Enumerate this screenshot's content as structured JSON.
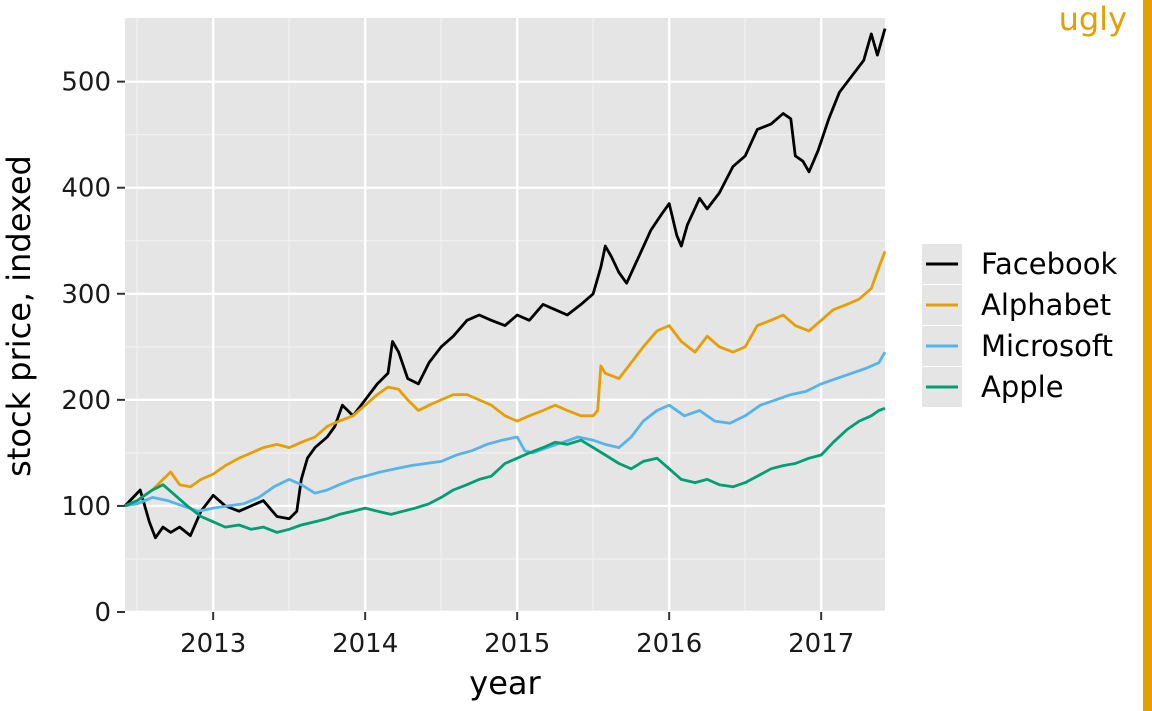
{
  "tag": {
    "text": "ugly",
    "color": "#E69F00"
  },
  "chart_data": {
    "type": "line",
    "title": "",
    "xlabel": "year",
    "ylabel": "stock price, indexed",
    "xlim": [
      2012.42,
      2017.42
    ],
    "ylim": [
      0,
      560
    ],
    "x_ticks": [
      2013,
      2014,
      2015,
      2016,
      2017
    ],
    "y_ticks": [
      0,
      100,
      200,
      300,
      400,
      500
    ],
    "grid": true,
    "panel_background": "#E5E5E5",
    "legend_position": "right",
    "series": [
      {
        "name": "Facebook",
        "color": "#000000",
        "points": [
          [
            2012.42,
            100
          ],
          [
            2012.52,
            115
          ],
          [
            2012.58,
            85
          ],
          [
            2012.62,
            70
          ],
          [
            2012.67,
            80
          ],
          [
            2012.72,
            75
          ],
          [
            2012.78,
            80
          ],
          [
            2012.85,
            72
          ],
          [
            2012.92,
            95
          ],
          [
            2013.0,
            110
          ],
          [
            2013.08,
            100
          ],
          [
            2013.17,
            95
          ],
          [
            2013.25,
            100
          ],
          [
            2013.33,
            105
          ],
          [
            2013.42,
            90
          ],
          [
            2013.5,
            88
          ],
          [
            2013.55,
            95
          ],
          [
            2013.58,
            125
          ],
          [
            2013.62,
            145
          ],
          [
            2013.67,
            155
          ],
          [
            2013.75,
            165
          ],
          [
            2013.8,
            175
          ],
          [
            2013.85,
            195
          ],
          [
            2013.92,
            185
          ],
          [
            2014.0,
            200
          ],
          [
            2014.08,
            215
          ],
          [
            2014.15,
            225
          ],
          [
            2014.18,
            255
          ],
          [
            2014.22,
            245
          ],
          [
            2014.28,
            220
          ],
          [
            2014.35,
            215
          ],
          [
            2014.42,
            235
          ],
          [
            2014.5,
            250
          ],
          [
            2014.58,
            260
          ],
          [
            2014.67,
            275
          ],
          [
            2014.75,
            280
          ],
          [
            2014.83,
            275
          ],
          [
            2014.92,
            270
          ],
          [
            2015.0,
            280
          ],
          [
            2015.08,
            275
          ],
          [
            2015.17,
            290
          ],
          [
            2015.25,
            285
          ],
          [
            2015.33,
            280
          ],
          [
            2015.42,
            290
          ],
          [
            2015.5,
            300
          ],
          [
            2015.55,
            325
          ],
          [
            2015.58,
            345
          ],
          [
            2015.62,
            335
          ],
          [
            2015.67,
            320
          ],
          [
            2015.72,
            310
          ],
          [
            2015.8,
            335
          ],
          [
            2015.88,
            360
          ],
          [
            2015.95,
            375
          ],
          [
            2016.0,
            385
          ],
          [
            2016.05,
            355
          ],
          [
            2016.08,
            345
          ],
          [
            2016.12,
            365
          ],
          [
            2016.2,
            390
          ],
          [
            2016.25,
            380
          ],
          [
            2016.33,
            395
          ],
          [
            2016.42,
            420
          ],
          [
            2016.5,
            430
          ],
          [
            2016.58,
            455
          ],
          [
            2016.67,
            460
          ],
          [
            2016.75,
            470
          ],
          [
            2016.8,
            465
          ],
          [
            2016.83,
            430
          ],
          [
            2016.88,
            425
          ],
          [
            2016.92,
            415
          ],
          [
            2016.98,
            435
          ],
          [
            2017.05,
            465
          ],
          [
            2017.12,
            490
          ],
          [
            2017.2,
            505
          ],
          [
            2017.28,
            520
          ],
          [
            2017.33,
            545
          ],
          [
            2017.37,
            525
          ],
          [
            2017.42,
            550
          ]
        ]
      },
      {
        "name": "Alphabet",
        "color": "#E69F00",
        "points": [
          [
            2012.42,
            100
          ],
          [
            2012.5,
            105
          ],
          [
            2012.6,
            115
          ],
          [
            2012.67,
            125
          ],
          [
            2012.72,
            132
          ],
          [
            2012.78,
            120
          ],
          [
            2012.85,
            118
          ],
          [
            2012.92,
            125
          ],
          [
            2013.0,
            130
          ],
          [
            2013.08,
            138
          ],
          [
            2013.17,
            145
          ],
          [
            2013.25,
            150
          ],
          [
            2013.33,
            155
          ],
          [
            2013.42,
            158
          ],
          [
            2013.5,
            155
          ],
          [
            2013.58,
            160
          ],
          [
            2013.67,
            165
          ],
          [
            2013.75,
            175
          ],
          [
            2013.83,
            180
          ],
          [
            2013.92,
            185
          ],
          [
            2014.0,
            195
          ],
          [
            2014.08,
            205
          ],
          [
            2014.15,
            212
          ],
          [
            2014.22,
            210
          ],
          [
            2014.28,
            200
          ],
          [
            2014.35,
            190
          ],
          [
            2014.42,
            195
          ],
          [
            2014.5,
            200
          ],
          [
            2014.58,
            205
          ],
          [
            2014.67,
            205
          ],
          [
            2014.75,
            200
          ],
          [
            2014.83,
            195
          ],
          [
            2014.92,
            185
          ],
          [
            2015.0,
            180
          ],
          [
            2015.08,
            185
          ],
          [
            2015.17,
            190
          ],
          [
            2015.25,
            195
          ],
          [
            2015.33,
            190
          ],
          [
            2015.42,
            185
          ],
          [
            2015.5,
            185
          ],
          [
            2015.53,
            190
          ],
          [
            2015.55,
            232
          ],
          [
            2015.58,
            225
          ],
          [
            2015.67,
            220
          ],
          [
            2015.75,
            235
          ],
          [
            2015.83,
            250
          ],
          [
            2015.92,
            265
          ],
          [
            2016.0,
            270
          ],
          [
            2016.08,
            255
          ],
          [
            2016.17,
            245
          ],
          [
            2016.25,
            260
          ],
          [
            2016.33,
            250
          ],
          [
            2016.42,
            245
          ],
          [
            2016.5,
            250
          ],
          [
            2016.58,
            270
          ],
          [
            2016.67,
            275
          ],
          [
            2016.75,
            280
          ],
          [
            2016.83,
            270
          ],
          [
            2016.92,
            265
          ],
          [
            2017.0,
            275
          ],
          [
            2017.08,
            285
          ],
          [
            2017.17,
            290
          ],
          [
            2017.25,
            295
          ],
          [
            2017.33,
            305
          ],
          [
            2017.38,
            325
          ],
          [
            2017.42,
            340
          ]
        ]
      },
      {
        "name": "Microsoft",
        "color": "#56B4E9",
        "points": [
          [
            2012.42,
            100
          ],
          [
            2012.5,
            102
          ],
          [
            2012.6,
            108
          ],
          [
            2012.7,
            105
          ],
          [
            2012.8,
            100
          ],
          [
            2012.9,
            95
          ],
          [
            2013.0,
            98
          ],
          [
            2013.1,
            100
          ],
          [
            2013.2,
            102
          ],
          [
            2013.3,
            108
          ],
          [
            2013.4,
            118
          ],
          [
            2013.5,
            125
          ],
          [
            2013.58,
            120
          ],
          [
            2013.67,
            112
          ],
          [
            2013.75,
            115
          ],
          [
            2013.83,
            120
          ],
          [
            2013.92,
            125
          ],
          [
            2014.0,
            128
          ],
          [
            2014.1,
            132
          ],
          [
            2014.2,
            135
          ],
          [
            2014.3,
            138
          ],
          [
            2014.4,
            140
          ],
          [
            2014.5,
            142
          ],
          [
            2014.6,
            148
          ],
          [
            2014.7,
            152
          ],
          [
            2014.8,
            158
          ],
          [
            2014.9,
            162
          ],
          [
            2015.0,
            165
          ],
          [
            2015.05,
            152
          ],
          [
            2015.1,
            150
          ],
          [
            2015.2,
            155
          ],
          [
            2015.3,
            160
          ],
          [
            2015.4,
            165
          ],
          [
            2015.5,
            162
          ],
          [
            2015.58,
            158
          ],
          [
            2015.67,
            155
          ],
          [
            2015.75,
            165
          ],
          [
            2015.83,
            180
          ],
          [
            2015.92,
            190
          ],
          [
            2016.0,
            195
          ],
          [
            2016.1,
            185
          ],
          [
            2016.2,
            190
          ],
          [
            2016.3,
            180
          ],
          [
            2016.4,
            178
          ],
          [
            2016.5,
            185
          ],
          [
            2016.6,
            195
          ],
          [
            2016.7,
            200
          ],
          [
            2016.8,
            205
          ],
          [
            2016.9,
            208
          ],
          [
            2017.0,
            215
          ],
          [
            2017.1,
            220
          ],
          [
            2017.2,
            225
          ],
          [
            2017.3,
            230
          ],
          [
            2017.38,
            235
          ],
          [
            2017.42,
            245
          ]
        ]
      },
      {
        "name": "Apple",
        "color": "#009E73",
        "points": [
          [
            2012.42,
            100
          ],
          [
            2012.5,
            105
          ],
          [
            2012.6,
            115
          ],
          [
            2012.67,
            120
          ],
          [
            2012.75,
            110
          ],
          [
            2012.83,
            100
          ],
          [
            2012.92,
            90
          ],
          [
            2013.0,
            85
          ],
          [
            2013.08,
            80
          ],
          [
            2013.17,
            82
          ],
          [
            2013.25,
            78
          ],
          [
            2013.33,
            80
          ],
          [
            2013.42,
            75
          ],
          [
            2013.5,
            78
          ],
          [
            2013.58,
            82
          ],
          [
            2013.67,
            85
          ],
          [
            2013.75,
            88
          ],
          [
            2013.83,
            92
          ],
          [
            2013.92,
            95
          ],
          [
            2014.0,
            98
          ],
          [
            2014.08,
            95
          ],
          [
            2014.17,
            92
          ],
          [
            2014.25,
            95
          ],
          [
            2014.33,
            98
          ],
          [
            2014.42,
            102
          ],
          [
            2014.5,
            108
          ],
          [
            2014.58,
            115
          ],
          [
            2014.67,
            120
          ],
          [
            2014.75,
            125
          ],
          [
            2014.83,
            128
          ],
          [
            2014.92,
            140
          ],
          [
            2015.0,
            145
          ],
          [
            2015.08,
            150
          ],
          [
            2015.17,
            155
          ],
          [
            2015.25,
            160
          ],
          [
            2015.33,
            158
          ],
          [
            2015.42,
            162
          ],
          [
            2015.5,
            155
          ],
          [
            2015.58,
            148
          ],
          [
            2015.67,
            140
          ],
          [
            2015.75,
            135
          ],
          [
            2015.83,
            142
          ],
          [
            2015.92,
            145
          ],
          [
            2016.0,
            135
          ],
          [
            2016.08,
            125
          ],
          [
            2016.17,
            122
          ],
          [
            2016.25,
            125
          ],
          [
            2016.33,
            120
          ],
          [
            2016.42,
            118
          ],
          [
            2016.5,
            122
          ],
          [
            2016.58,
            128
          ],
          [
            2016.67,
            135
          ],
          [
            2016.75,
            138
          ],
          [
            2016.83,
            140
          ],
          [
            2016.92,
            145
          ],
          [
            2017.0,
            148
          ],
          [
            2017.08,
            160
          ],
          [
            2017.17,
            172
          ],
          [
            2017.25,
            180
          ],
          [
            2017.33,
            185
          ],
          [
            2017.38,
            190
          ],
          [
            2017.42,
            192
          ]
        ]
      }
    ]
  }
}
